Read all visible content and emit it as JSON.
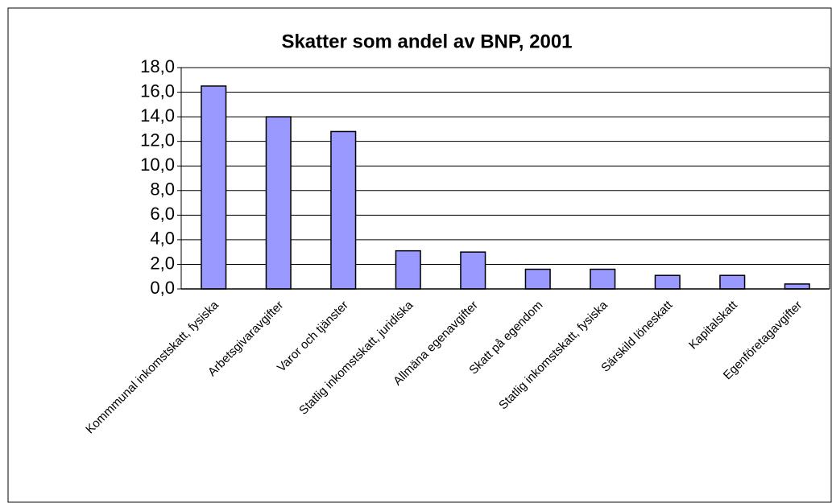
{
  "chart_data": {
    "type": "bar",
    "title": "Skatter som andel av BNP, 2001",
    "categories": [
      "Kommmunal inkomstskatt, fysiska",
      "Arbetsgivaravgifter",
      "Varor och tjänster",
      "Statlig inkomstskatt, juridiska",
      "Allmäna egenavgifter",
      "Skatt på egendom",
      "Statlig inkomstskatt, fysiska",
      "Särskild löneskatt",
      "Kapitalskatt",
      "Egenföretagavgifter"
    ],
    "values": [
      16.5,
      14.0,
      12.8,
      3.1,
      3.0,
      1.6,
      1.6,
      1.1,
      1.1,
      0.4
    ],
    "color": "#9999ff",
    "ylim": [
      0,
      18
    ],
    "yticks": [
      {
        "value": 0,
        "label": "0,0"
      },
      {
        "value": 2,
        "label": "2,0"
      },
      {
        "value": 4,
        "label": "4,0"
      },
      {
        "value": 6,
        "label": "6,0"
      },
      {
        "value": 8,
        "label": "8,0"
      },
      {
        "value": 10,
        "label": "10,0"
      },
      {
        "value": 12,
        "label": "12,0"
      },
      {
        "value": 14,
        "label": "14,0"
      },
      {
        "value": 16,
        "label": "16,0"
      },
      {
        "value": 18,
        "label": "18,0"
      }
    ],
    "grid": true
  }
}
